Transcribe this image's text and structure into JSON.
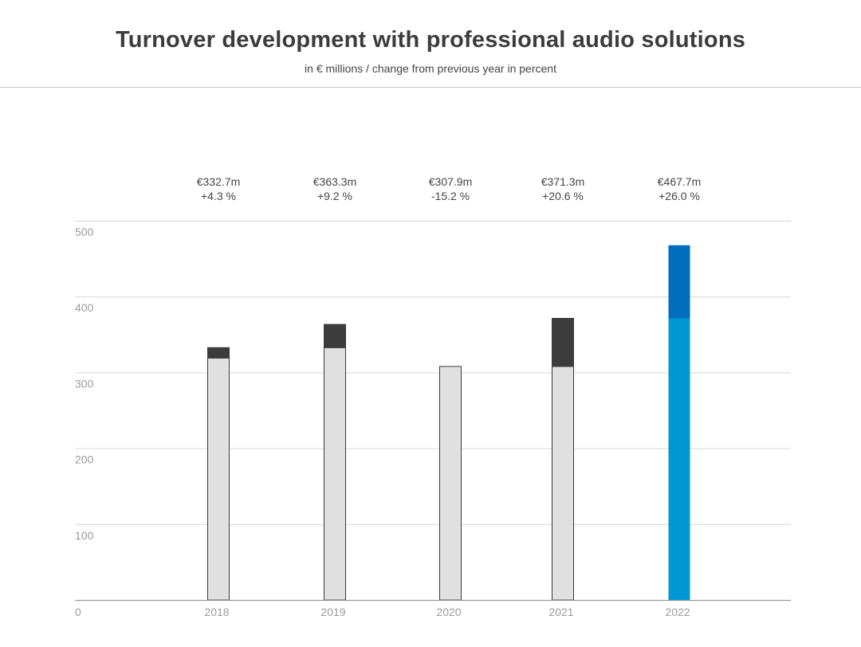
{
  "header": {
    "title": "Turnover development with professional audio solutions",
    "subtitle": "in € millions / change from previous year in percent"
  },
  "colors": {
    "base_fill": "#e0e0e0",
    "base_stroke": "#3a3a3a",
    "increase_fill": "#3c3c3c",
    "highlight_base": "#0097d6",
    "highlight_increase": "#006ebf",
    "grid": "#d6d6d6",
    "axis_text": "#9a9a9a",
    "label_text": "#444444"
  },
  "chart_data": {
    "type": "bar",
    "categories": [
      "2018",
      "2019",
      "2020",
      "2021",
      "2022"
    ],
    "values": [
      332.7,
      363.3,
      307.9,
      371.3,
      467.7
    ],
    "value_labels": [
      "€332.7m",
      "€363.3m",
      "€307.9m",
      "€371.3m",
      "€467.7m"
    ],
    "change_labels": [
      "+4.3 %",
      "+9.2 %",
      "-15.2 %",
      "+20.6 %",
      "+26.0 %"
    ],
    "highlight_index": 4,
    "ylim": [
      0,
      500
    ],
    "yticks": [
      0,
      100,
      200,
      300,
      400,
      500
    ],
    "grid": true
  }
}
